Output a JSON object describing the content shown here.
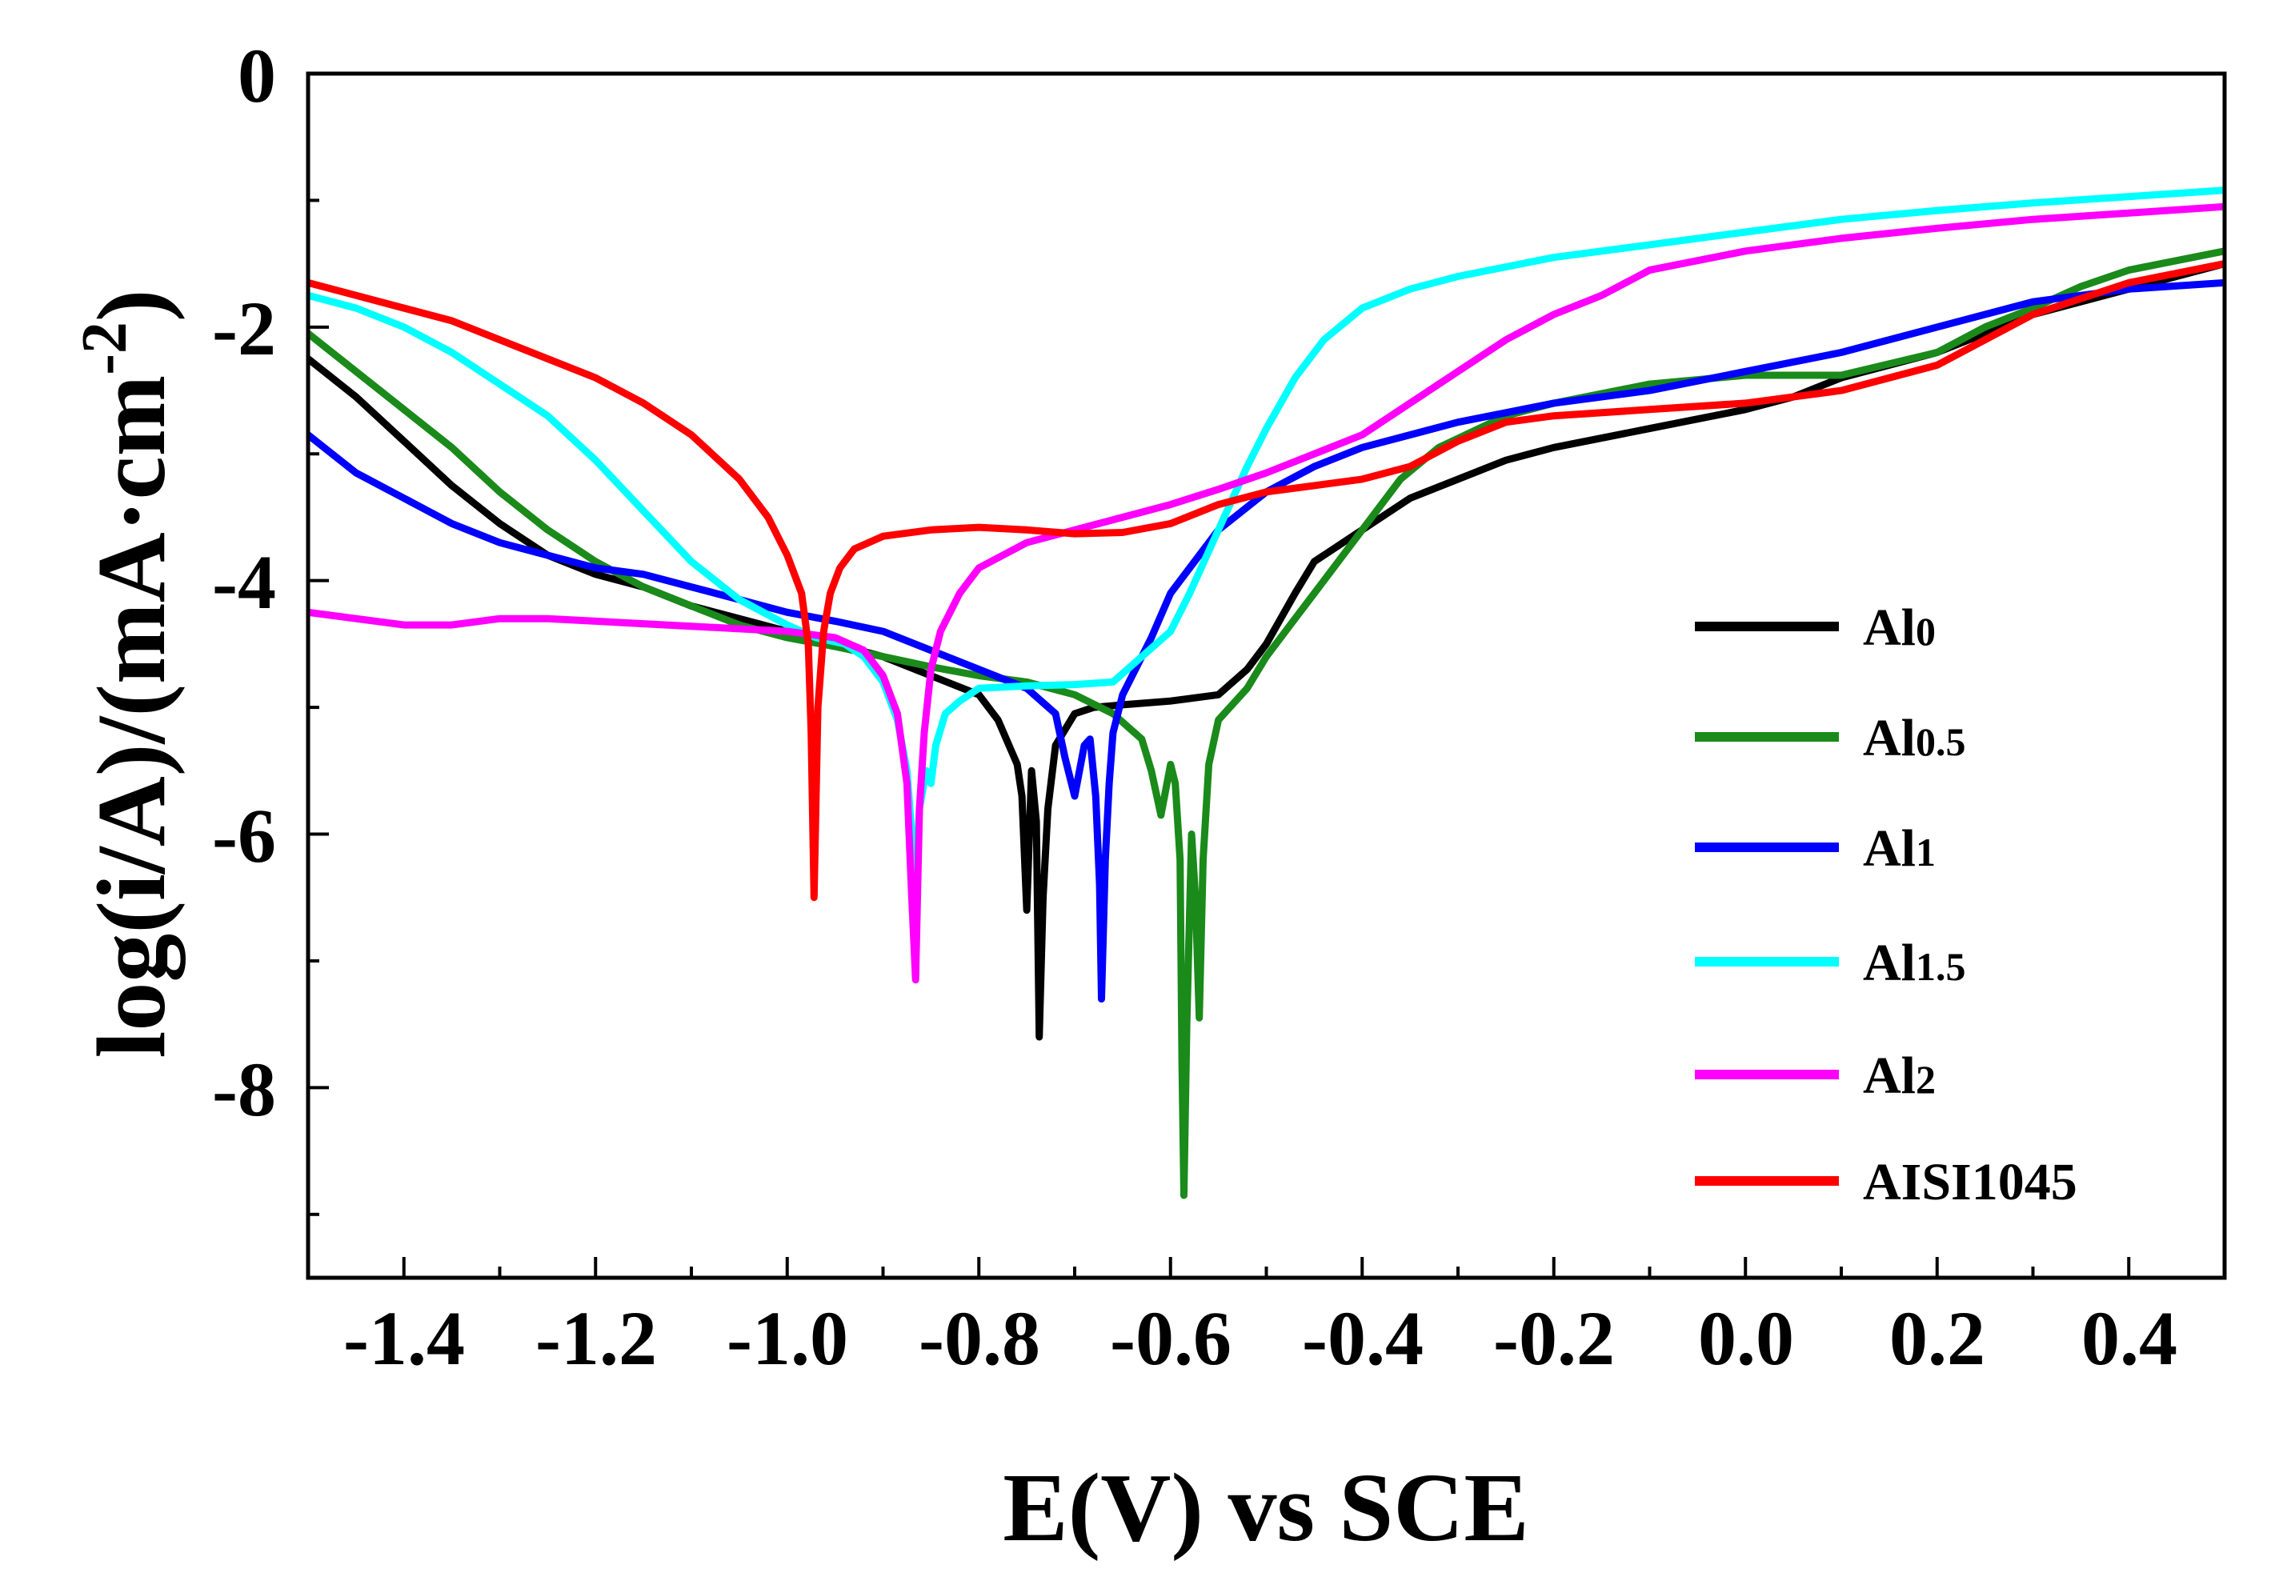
{
  "chart_data": {
    "type": "line",
    "title": "",
    "xlabel": "E(V) vs SCE",
    "ylabel": "log(i/A)/(mA·cm",
    "ylabel_superscript": "-2",
    "ylabel_close": ")",
    "xlim": [
      -1.5,
      0.5
    ],
    "ylim": [
      -9.5,
      0
    ],
    "x_ticks": [
      -1.4,
      -1.2,
      -1.0,
      -0.8,
      -0.6,
      -0.4,
      -0.2,
      0.0,
      0.2,
      0.4
    ],
    "x_tick_labels": [
      "-1.4",
      "-1.2",
      "-1.0",
      "-0.8",
      "-0.6",
      "-0.4",
      "-0.2",
      "0.0",
      "0.2",
      "0.4"
    ],
    "y_ticks": [
      0,
      -2,
      -4,
      -6,
      -8
    ],
    "y_tick_labels": [
      "0",
      "-2",
      "-4",
      "-6",
      "-8"
    ],
    "grid": false,
    "legend_position": "right",
    "series": [
      {
        "name": "Al0",
        "label_main": "Al",
        "label_sub": "0",
        "color": "#000000",
        "points": [
          [
            -1.5,
            -2.25
          ],
          [
            -1.45,
            -2.55
          ],
          [
            -1.4,
            -2.9
          ],
          [
            -1.35,
            -3.25
          ],
          [
            -1.3,
            -3.55
          ],
          [
            -1.25,
            -3.8
          ],
          [
            -1.2,
            -3.95
          ],
          [
            -1.15,
            -4.05
          ],
          [
            -1.1,
            -4.2
          ],
          [
            -1.05,
            -4.3
          ],
          [
            -1.0,
            -4.4
          ],
          [
            -0.95,
            -4.5
          ],
          [
            -0.9,
            -4.6
          ],
          [
            -0.85,
            -4.75
          ],
          [
            -0.8,
            -4.9
          ],
          [
            -0.78,
            -5.1
          ],
          [
            -0.76,
            -5.45
          ],
          [
            -0.755,
            -5.7
          ],
          [
            -0.75,
            -6.6
          ],
          [
            -0.745,
            -5.5
          ],
          [
            -0.74,
            -5.9
          ],
          [
            -0.737,
            -7.6
          ],
          [
            -0.733,
            -6.5
          ],
          [
            -0.728,
            -5.8
          ],
          [
            -0.72,
            -5.3
          ],
          [
            -0.7,
            -5.05
          ],
          [
            -0.68,
            -5.0
          ],
          [
            -0.65,
            -4.98
          ],
          [
            -0.6,
            -4.95
          ],
          [
            -0.55,
            -4.9
          ],
          [
            -0.52,
            -4.7
          ],
          [
            -0.5,
            -4.5
          ],
          [
            -0.47,
            -4.1
          ],
          [
            -0.45,
            -3.85
          ],
          [
            -0.4,
            -3.6
          ],
          [
            -0.35,
            -3.35
          ],
          [
            -0.3,
            -3.2
          ],
          [
            -0.25,
            -3.05
          ],
          [
            -0.2,
            -2.95
          ],
          [
            -0.1,
            -2.8
          ],
          [
            0.0,
            -2.65
          ],
          [
            0.05,
            -2.55
          ],
          [
            0.1,
            -2.4
          ],
          [
            0.2,
            -2.2
          ],
          [
            0.3,
            -1.9
          ],
          [
            0.4,
            -1.7
          ],
          [
            0.5,
            -1.5
          ]
        ]
      },
      {
        "name": "Al0.5",
        "label_main": "Al",
        "label_sub": "0.5",
        "color": "#1a8a1a",
        "points": [
          [
            -1.5,
            -2.05
          ],
          [
            -1.45,
            -2.35
          ],
          [
            -1.4,
            -2.65
          ],
          [
            -1.35,
            -2.95
          ],
          [
            -1.3,
            -3.3
          ],
          [
            -1.25,
            -3.6
          ],
          [
            -1.2,
            -3.85
          ],
          [
            -1.15,
            -4.05
          ],
          [
            -1.1,
            -4.2
          ],
          [
            -1.05,
            -4.35
          ],
          [
            -1.0,
            -4.45
          ],
          [
            -0.95,
            -4.52
          ],
          [
            -0.9,
            -4.6
          ],
          [
            -0.85,
            -4.68
          ],
          [
            -0.8,
            -4.75
          ],
          [
            -0.75,
            -4.8
          ],
          [
            -0.7,
            -4.9
          ],
          [
            -0.66,
            -5.05
          ],
          [
            -0.63,
            -5.25
          ],
          [
            -0.62,
            -5.5
          ],
          [
            -0.61,
            -5.85
          ],
          [
            -0.6,
            -5.45
          ],
          [
            -0.595,
            -5.6
          ],
          [
            -0.59,
            -6.2
          ],
          [
            -0.588,
            -7.8
          ],
          [
            -0.586,
            -8.85
          ],
          [
            -0.583,
            -7.5
          ],
          [
            -0.578,
            -6.0
          ],
          [
            -0.574,
            -6.5
          ],
          [
            -0.57,
            -7.45
          ],
          [
            -0.566,
            -6.2
          ],
          [
            -0.56,
            -5.45
          ],
          [
            -0.55,
            -5.1
          ],
          [
            -0.52,
            -4.85
          ],
          [
            -0.5,
            -4.6
          ],
          [
            -0.47,
            -4.3
          ],
          [
            -0.44,
            -4.0
          ],
          [
            -0.4,
            -3.6
          ],
          [
            -0.36,
            -3.2
          ],
          [
            -0.32,
            -2.95
          ],
          [
            -0.25,
            -2.7
          ],
          [
            -0.2,
            -2.6
          ],
          [
            -0.1,
            -2.45
          ],
          [
            0.0,
            -2.38
          ],
          [
            0.1,
            -2.38
          ],
          [
            0.2,
            -2.2
          ],
          [
            0.25,
            -2.0
          ],
          [
            0.3,
            -1.85
          ],
          [
            0.35,
            -1.68
          ],
          [
            0.4,
            -1.55
          ],
          [
            0.5,
            -1.4
          ]
        ]
      },
      {
        "name": "Al1",
        "label_main": "Al",
        "label_sub": "1",
        "color": "#0000ff",
        "points": [
          [
            -1.5,
            -2.85
          ],
          [
            -1.45,
            -3.15
          ],
          [
            -1.4,
            -3.35
          ],
          [
            -1.35,
            -3.55
          ],
          [
            -1.3,
            -3.7
          ],
          [
            -1.25,
            -3.8
          ],
          [
            -1.2,
            -3.9
          ],
          [
            -1.15,
            -3.95
          ],
          [
            -1.1,
            -4.05
          ],
          [
            -1.05,
            -4.15
          ],
          [
            -1.0,
            -4.25
          ],
          [
            -0.95,
            -4.32
          ],
          [
            -0.9,
            -4.4
          ],
          [
            -0.85,
            -4.55
          ],
          [
            -0.8,
            -4.7
          ],
          [
            -0.75,
            -4.85
          ],
          [
            -0.72,
            -5.05
          ],
          [
            -0.71,
            -5.4
          ],
          [
            -0.7,
            -5.7
          ],
          [
            -0.69,
            -5.3
          ],
          [
            -0.684,
            -5.25
          ],
          [
            -0.678,
            -5.7
          ],
          [
            -0.674,
            -6.4
          ],
          [
            -0.672,
            -7.3
          ],
          [
            -0.668,
            -6.2
          ],
          [
            -0.664,
            -5.6
          ],
          [
            -0.66,
            -5.2
          ],
          [
            -0.65,
            -4.9
          ],
          [
            -0.62,
            -4.45
          ],
          [
            -0.6,
            -4.1
          ],
          [
            -0.55,
            -3.6
          ],
          [
            -0.5,
            -3.3
          ],
          [
            -0.45,
            -3.1
          ],
          [
            -0.4,
            -2.95
          ],
          [
            -0.3,
            -2.75
          ],
          [
            -0.2,
            -2.6
          ],
          [
            -0.1,
            -2.5
          ],
          [
            0.0,
            -2.35
          ],
          [
            0.1,
            -2.2
          ],
          [
            0.2,
            -2.0
          ],
          [
            0.3,
            -1.8
          ],
          [
            0.4,
            -1.7
          ],
          [
            0.5,
            -1.65
          ]
        ]
      },
      {
        "name": "Al1.5",
        "label_main": "Al",
        "label_sub": "1.5",
        "color": "#00ffff",
        "points": [
          [
            -1.5,
            -1.75
          ],
          [
            -1.45,
            -1.85
          ],
          [
            -1.4,
            -2.0
          ],
          [
            -1.35,
            -2.2
          ],
          [
            -1.3,
            -2.45
          ],
          [
            -1.25,
            -2.7
          ],
          [
            -1.2,
            -3.05
          ],
          [
            -1.15,
            -3.45
          ],
          [
            -1.1,
            -3.85
          ],
          [
            -1.05,
            -4.15
          ],
          [
            -1.0,
            -4.35
          ],
          [
            -0.97,
            -4.45
          ],
          [
            -0.94,
            -4.5
          ],
          [
            -0.92,
            -4.6
          ],
          [
            -0.9,
            -4.8
          ],
          [
            -0.885,
            -5.1
          ],
          [
            -0.875,
            -5.5
          ],
          [
            -0.866,
            -6.4
          ],
          [
            -0.862,
            -5.8
          ],
          [
            -0.855,
            -5.5
          ],
          [
            -0.85,
            -5.6
          ],
          [
            -0.845,
            -5.3
          ],
          [
            -0.835,
            -5.05
          ],
          [
            -0.82,
            -4.95
          ],
          [
            -0.8,
            -4.85
          ],
          [
            -0.75,
            -4.83
          ],
          [
            -0.7,
            -4.82
          ],
          [
            -0.66,
            -4.8
          ],
          [
            -0.63,
            -4.6
          ],
          [
            -0.6,
            -4.4
          ],
          [
            -0.58,
            -4.1
          ],
          [
            -0.55,
            -3.6
          ],
          [
            -0.52,
            -3.1
          ],
          [
            -0.5,
            -2.8
          ],
          [
            -0.47,
            -2.4
          ],
          [
            -0.44,
            -2.1
          ],
          [
            -0.4,
            -1.85
          ],
          [
            -0.35,
            -1.7
          ],
          [
            -0.3,
            -1.6
          ],
          [
            -0.2,
            -1.45
          ],
          [
            -0.1,
            -1.35
          ],
          [
            0.0,
            -1.25
          ],
          [
            0.1,
            -1.15
          ],
          [
            0.2,
            -1.08
          ],
          [
            0.3,
            -1.02
          ],
          [
            0.4,
            -0.97
          ],
          [
            0.5,
            -0.92
          ]
        ]
      },
      {
        "name": "Al2",
        "label_main": "Al",
        "label_sub": "2",
        "color": "#ff00ff",
        "points": [
          [
            -1.5,
            -4.25
          ],
          [
            -1.45,
            -4.3
          ],
          [
            -1.4,
            -4.35
          ],
          [
            -1.35,
            -4.35
          ],
          [
            -1.3,
            -4.3
          ],
          [
            -1.25,
            -4.3
          ],
          [
            -1.2,
            -4.32
          ],
          [
            -1.1,
            -4.36
          ],
          [
            -1.0,
            -4.4
          ],
          [
            -0.95,
            -4.45
          ],
          [
            -0.92,
            -4.55
          ],
          [
            -0.9,
            -4.75
          ],
          [
            -0.885,
            -5.05
          ],
          [
            -0.875,
            -5.6
          ],
          [
            -0.87,
            -6.5
          ],
          [
            -0.866,
            -7.15
          ],
          [
            -0.862,
            -5.8
          ],
          [
            -0.857,
            -5.2
          ],
          [
            -0.85,
            -4.7
          ],
          [
            -0.84,
            -4.4
          ],
          [
            -0.82,
            -4.1
          ],
          [
            -0.8,
            -3.9
          ],
          [
            -0.75,
            -3.7
          ],
          [
            -0.7,
            -3.6
          ],
          [
            -0.65,
            -3.5
          ],
          [
            -0.6,
            -3.4
          ],
          [
            -0.55,
            -3.28
          ],
          [
            -0.5,
            -3.15
          ],
          [
            -0.45,
            -3.0
          ],
          [
            -0.4,
            -2.85
          ],
          [
            -0.35,
            -2.6
          ],
          [
            -0.3,
            -2.35
          ],
          [
            -0.25,
            -2.1
          ],
          [
            -0.2,
            -1.9
          ],
          [
            -0.15,
            -1.75
          ],
          [
            -0.1,
            -1.55
          ],
          [
            0.0,
            -1.4
          ],
          [
            0.1,
            -1.3
          ],
          [
            0.2,
            -1.22
          ],
          [
            0.3,
            -1.15
          ],
          [
            0.4,
            -1.1
          ],
          [
            0.5,
            -1.05
          ]
        ]
      },
      {
        "name": "AISI1045",
        "label_main": "AISI1045",
        "label_sub": "",
        "color": "#ff0000",
        "points": [
          [
            -1.5,
            -1.65
          ],
          [
            -1.45,
            -1.75
          ],
          [
            -1.4,
            -1.85
          ],
          [
            -1.35,
            -1.95
          ],
          [
            -1.3,
            -2.1
          ],
          [
            -1.25,
            -2.25
          ],
          [
            -1.2,
            -2.4
          ],
          [
            -1.15,
            -2.6
          ],
          [
            -1.1,
            -2.85
          ],
          [
            -1.05,
            -3.2
          ],
          [
            -1.02,
            -3.5
          ],
          [
            -1.0,
            -3.8
          ],
          [
            -0.985,
            -4.1
          ],
          [
            -0.978,
            -4.5
          ],
          [
            -0.975,
            -5.2
          ],
          [
            -0.972,
            -6.5
          ],
          [
            -0.968,
            -5.0
          ],
          [
            -0.962,
            -4.4
          ],
          [
            -0.955,
            -4.1
          ],
          [
            -0.945,
            -3.9
          ],
          [
            -0.93,
            -3.75
          ],
          [
            -0.9,
            -3.65
          ],
          [
            -0.85,
            -3.6
          ],
          [
            -0.8,
            -3.58
          ],
          [
            -0.75,
            -3.6
          ],
          [
            -0.7,
            -3.63
          ],
          [
            -0.65,
            -3.62
          ],
          [
            -0.6,
            -3.55
          ],
          [
            -0.55,
            -3.4
          ],
          [
            -0.5,
            -3.3
          ],
          [
            -0.45,
            -3.25
          ],
          [
            -0.4,
            -3.2
          ],
          [
            -0.35,
            -3.1
          ],
          [
            -0.3,
            -2.9
          ],
          [
            -0.25,
            -2.75
          ],
          [
            -0.2,
            -2.7
          ],
          [
            -0.1,
            -2.65
          ],
          [
            0.0,
            -2.6
          ],
          [
            0.1,
            -2.5
          ],
          [
            0.2,
            -2.3
          ],
          [
            0.3,
            -1.9
          ],
          [
            0.4,
            -1.65
          ],
          [
            0.5,
            -1.5
          ]
        ]
      }
    ]
  }
}
